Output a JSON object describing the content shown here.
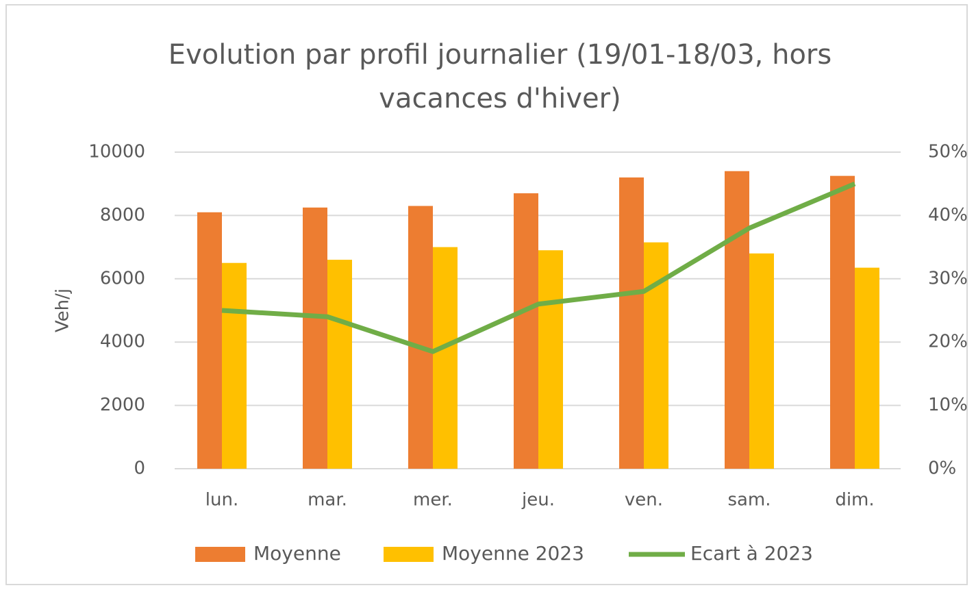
{
  "chart_data": {
    "type": "bar-line",
    "title": "Evolution par profil journalier (19/01-18/03, hors vacances d'hiver)",
    "ylabel": "Veh/j",
    "categories": [
      "lun.",
      "mar.",
      "mer.",
      "jeu.",
      "ven.",
      "sam.",
      "dim."
    ],
    "series": [
      {
        "name": "Moyenne",
        "type": "bar",
        "color": "#ed7d31",
        "values": [
          8100,
          8250,
          8300,
          8700,
          9200,
          9400,
          9250
        ]
      },
      {
        "name": "Moyenne 2023",
        "type": "bar",
        "color": "#ffc000",
        "values": [
          6500,
          6600,
          7000,
          6900,
          7150,
          6800,
          6350
        ]
      },
      {
        "name": "Ecart à 2023",
        "type": "line",
        "axis": "y2",
        "color": "#70ad47",
        "values": [
          25,
          24,
          18.5,
          26,
          28,
          38,
          45
        ]
      }
    ],
    "ylim": [
      0,
      10000
    ],
    "yticks": [
      0,
      2000,
      4000,
      6000,
      8000,
      10000
    ],
    "y2lim": [
      0,
      50
    ],
    "y2ticks": [
      {
        "value": 0,
        "label": "0%"
      },
      {
        "value": 10,
        "label": "10%"
      },
      {
        "value": 20,
        "label": "20%"
      },
      {
        "value": 30,
        "label": "30%"
      },
      {
        "value": 40,
        "label": "40%"
      },
      {
        "value": 50,
        "label": "50%"
      }
    ],
    "grid": true,
    "legend": "bottom"
  }
}
